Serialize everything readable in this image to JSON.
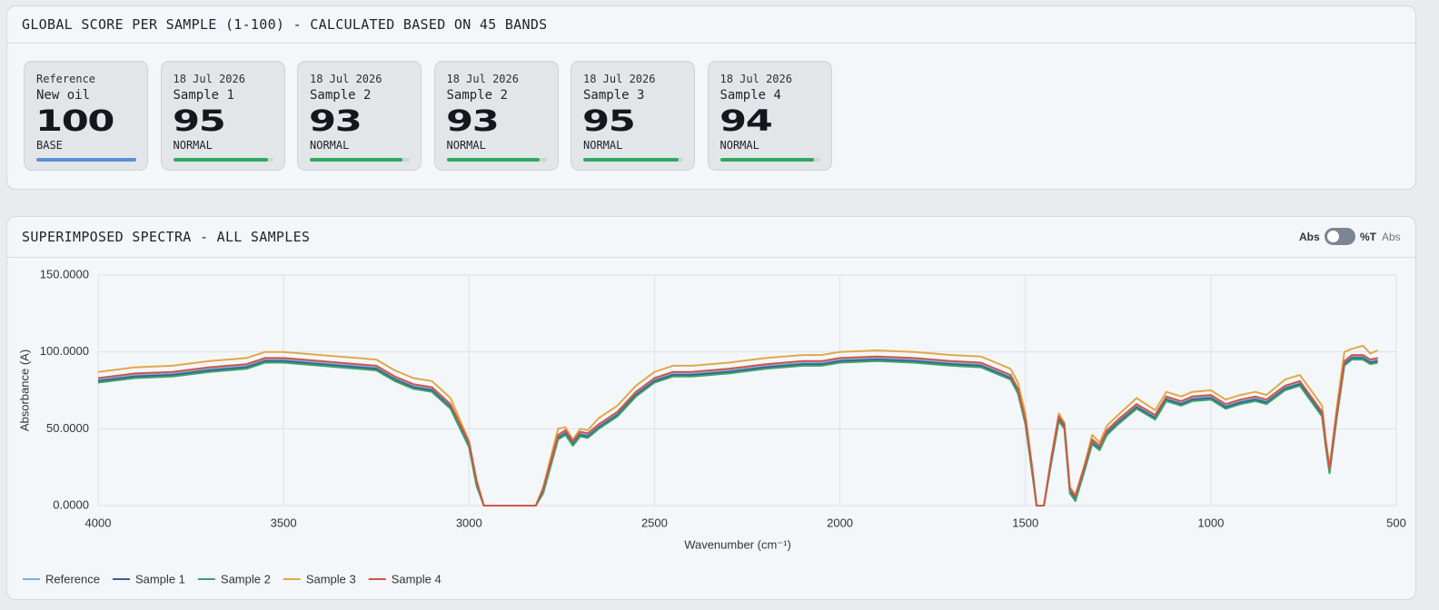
{
  "score_panel": {
    "title": "GLOBAL SCORE PER SAMPLE (1-100) - CALCULATED BASED ON 45 BANDS",
    "cards": [
      {
        "date": "Reference",
        "name": "New oil",
        "score": 100,
        "status": "BASE",
        "color": "#5b8fd6"
      },
      {
        "date": "18 Jul 2026",
        "name": "Sample 1",
        "score": 95,
        "status": "NORMAL",
        "color": "#2fa860"
      },
      {
        "date": "18 Jul 2026",
        "name": "Sample 2",
        "score": 93,
        "status": "NORMAL",
        "color": "#2fa860"
      },
      {
        "date": "18 Jul 2026",
        "name": "Sample 2",
        "score": 93,
        "status": "NORMAL",
        "color": "#2fa860"
      },
      {
        "date": "18 Jul 2026",
        "name": "Sample 3",
        "score": 95,
        "status": "NORMAL",
        "color": "#2fa860"
      },
      {
        "date": "18 Jul 2026",
        "name": "Sample 4",
        "score": 94,
        "status": "NORMAL",
        "color": "#2fa860"
      }
    ]
  },
  "spectra_panel": {
    "title": "SUPERIMPOSED SPECTRA - ALL SAMPLES",
    "toggle": {
      "left_label": "Abs",
      "right_label": "%T",
      "state": "Abs"
    }
  },
  "chart_data": {
    "type": "line",
    "x_label": "Wavenumber (cm⁻¹)",
    "y_label": "Absorbance (A)",
    "xlim": [
      4000,
      500
    ],
    "xticks": [
      4000,
      3500,
      3000,
      2500,
      2000,
      1500,
      1000,
      500
    ],
    "ylim": [
      0,
      150
    ],
    "yticks": [
      {
        "value": 0,
        "label": "0.0000"
      },
      {
        "value": 50,
        "label": "50.0000"
      },
      {
        "value": 100,
        "label": "100.0000"
      },
      {
        "value": 150,
        "label": "150.0000"
      }
    ],
    "grid": true,
    "x": [
      4000,
      3900,
      3800,
      3700,
      3600,
      3550,
      3500,
      3400,
      3300,
      3250,
      3200,
      3150,
      3100,
      3050,
      3000,
      2980,
      2960,
      2900,
      2820,
      2800,
      2760,
      2740,
      2720,
      2700,
      2680,
      2650,
      2600,
      2550,
      2500,
      2450,
      2400,
      2300,
      2200,
      2100,
      2050,
      2000,
      1900,
      1800,
      1700,
      1620,
      1580,
      1540,
      1520,
      1500,
      1480,
      1470,
      1450,
      1430,
      1410,
      1395,
      1380,
      1365,
      1340,
      1320,
      1300,
      1280,
      1250,
      1200,
      1150,
      1120,
      1080,
      1050,
      1000,
      960,
      920,
      880,
      850,
      800,
      760,
      730,
      700,
      690,
      680,
      660,
      640,
      620,
      590,
      570,
      550
    ],
    "series": [
      {
        "name": "Reference",
        "color": "#7fb0d8",
        "values": [
          82,
          85,
          86,
          89,
          91,
          95,
          95,
          93,
          91,
          90,
          83,
          78,
          76,
          65,
          40,
          15,
          0,
          0,
          0,
          10,
          45,
          48,
          41,
          47,
          46,
          52,
          60,
          73,
          82,
          86,
          86,
          88,
          91,
          93,
          93,
          95,
          96,
          95,
          93,
          92,
          88,
          84,
          75,
          55,
          20,
          0,
          0,
          30,
          57,
          52,
          10,
          5,
          25,
          42,
          38,
          48,
          55,
          65,
          58,
          70,
          67,
          70,
          71,
          65,
          68,
          70,
          68,
          77,
          80,
          70,
          60,
          40,
          23,
          60,
          93,
          97,
          97,
          94,
          95
        ]
      },
      {
        "name": "Sample 1",
        "color": "#3b5f8f",
        "values": [
          81,
          84,
          85,
          88,
          90,
          94,
          94,
          92,
          90,
          89,
          82,
          77,
          75,
          64,
          39,
          14,
          0,
          0,
          0,
          9,
          44,
          47,
          40,
          46,
          45,
          51,
          59,
          72,
          81,
          85,
          85,
          87,
          90,
          92,
          92,
          94,
          95,
          94,
          92,
          91,
          87,
          83,
          74,
          54,
          19,
          0,
          0,
          29,
          56,
          51,
          9,
          4,
          24,
          41,
          37,
          47,
          54,
          64,
          57,
          69,
          66,
          69,
          70,
          64,
          67,
          69,
          67,
          76,
          79,
          69,
          59,
          39,
          22,
          59,
          92,
          96,
          96,
          93,
          94
        ]
      },
      {
        "name": "Sample 2",
        "color": "#3aa36a",
        "values": [
          80,
          83,
          84,
          87,
          89,
          93,
          93,
          91,
          89,
          88,
          81,
          76,
          74,
          63,
          38,
          13,
          0,
          0,
          0,
          8,
          43,
          46,
          39,
          45,
          44,
          50,
          58,
          71,
          80,
          84,
          84,
          86,
          89,
          91,
          91,
          93,
          94,
          93,
          91,
          90,
          86,
          82,
          73,
          53,
          18,
          0,
          0,
          28,
          55,
          50,
          8,
          3,
          23,
          40,
          36,
          46,
          53,
          63,
          56,
          68,
          65,
          68,
          69,
          63,
          66,
          68,
          66,
          75,
          78,
          68,
          58,
          38,
          21,
          58,
          91,
          95,
          95,
          92,
          93
        ]
      },
      {
        "name": "Sample 3",
        "color": "#e0a84a",
        "values": [
          87,
          90,
          91,
          94,
          96,
          100,
          100,
          98,
          96,
          95,
          88,
          83,
          81,
          70,
          42,
          17,
          0,
          0,
          0,
          12,
          50,
          51,
          43,
          50,
          49,
          57,
          65,
          78,
          87,
          91,
          91,
          93,
          96,
          98,
          98,
          100,
          101,
          100,
          98,
          97,
          93,
          89,
          80,
          60,
          22,
          0,
          0,
          32,
          60,
          54,
          12,
          7,
          27,
          46,
          41,
          52,
          59,
          70,
          62,
          74,
          71,
          74,
          75,
          69,
          72,
          74,
          72,
          82,
          85,
          75,
          65,
          43,
          25,
          65,
          100,
          102,
          104,
          99,
          101
        ]
      },
      {
        "name": "Sample 4",
        "color": "#d0564a",
        "values": [
          83,
          86,
          87,
          90,
          92,
          96,
          96,
          94,
          92,
          91,
          84,
          79,
          77,
          66,
          41,
          16,
          0,
          0,
          0,
          11,
          46,
          49,
          42,
          48,
          47,
          53,
          61,
          74,
          83,
          87,
          87,
          89,
          92,
          94,
          94,
          96,
          97,
          96,
          94,
          93,
          89,
          85,
          76,
          56,
          21,
          0,
          0,
          31,
          58,
          53,
          11,
          6,
          26,
          43,
          39,
          49,
          56,
          66,
          59,
          71,
          68,
          71,
          72,
          66,
          69,
          71,
          69,
          78,
          81,
          71,
          61,
          41,
          24,
          61,
          94,
          98,
          98,
          95,
          96
        ]
      }
    ]
  }
}
